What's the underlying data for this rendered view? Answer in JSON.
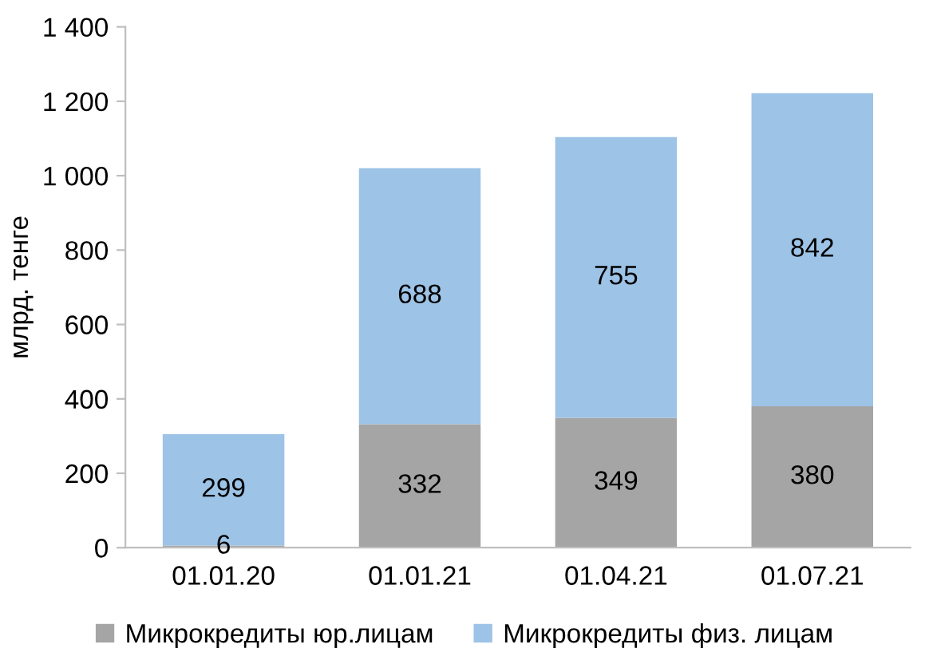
{
  "chart_data": {
    "type": "bar",
    "stacked": true,
    "ylabel": "млрд. тенге",
    "categories": [
      "01.01.20",
      "01.01.21",
      "01.04.21",
      "01.07.21"
    ],
    "series": [
      {
        "name": "Микрокредиты юр.лицам",
        "color": "#a5a5a5",
        "values": [
          6,
          332,
          349,
          380
        ]
      },
      {
        "name": "Микрокредиты физ. лицам",
        "color": "#9dc3e6",
        "values": [
          299,
          688,
          755,
          842
        ]
      }
    ],
    "ylim": [
      0,
      1400
    ],
    "yticks": [
      0,
      200,
      400,
      600,
      800,
      {
        "value": 1000,
        "label": "1 000"
      },
      {
        "value": 1200,
        "label": "1 200"
      },
      {
        "value": 1400,
        "label": "1 400"
      }
    ],
    "data_labels": true,
    "legend": "bottom",
    "grid": false
  }
}
